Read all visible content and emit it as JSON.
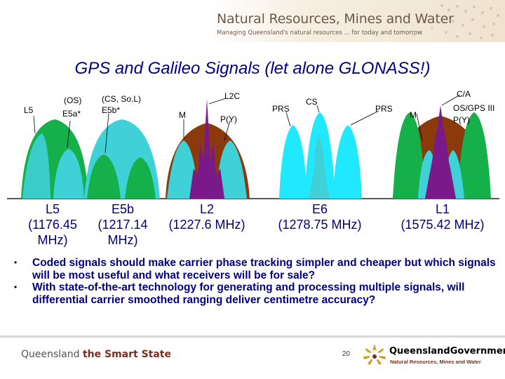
{
  "header": {
    "org": "Natural Resources, Mines and Water",
    "tagline": "Managing Queensland's natural resources ... for today and tomorrow"
  },
  "title": "GPS and Galileo Signals (let alone GLONASS!)",
  "signal_labels": {
    "l5": "L5",
    "os": "(OS)",
    "e5a": "E5a*",
    "cs_sol": "(CS, So.L)",
    "e5b": "E5b*",
    "l2c": "L2C",
    "m_l2": "M",
    "py_l2": "P(Y)",
    "prs_e6": "PRS",
    "cs_e6": "CS",
    "prs_l1": "PRS",
    "m_l1": "M",
    "ca": "C/A",
    "os_gps3": "OS/GPS III",
    "py_l1": "P(Y)"
  },
  "bands": [
    {
      "name": "L5",
      "freq": "(1176.45",
      "freq2": "MHz)"
    },
    {
      "name": "E5b",
      "freq": "(1217.14",
      "freq2": "MHz)"
    },
    {
      "name": "L2",
      "freq": "(1227.6 MHz)"
    },
    {
      "name": "E6",
      "freq": "(1278.75 MHz)"
    },
    {
      "name": "L1",
      "freq": "(1575.42 MHz)"
    }
  ],
  "bullets": [
    "Coded signals should make carrier phase tracking simpler and cheaper but which signals will be most useful and what receivers will be for sale?",
    "With state-of-the-art technology for generating and processing multiple signals, will differential carrier smoothed ranging deliver centimetre accuracy?"
  ],
  "footer": {
    "left_prefix": "Queensland",
    "left_strong": "the Smart State",
    "page": "20",
    "gov": "QueenslandGovernment",
    "gov_sub": "Natural Resources, Mines and Water"
  },
  "colors": {
    "title": "#000080",
    "green": "#16b04a",
    "cyan": "#3fd0d8",
    "brown": "#8b3a0c",
    "purple": "#7a1a8a",
    "light_cyan": "#20e8ff"
  }
}
